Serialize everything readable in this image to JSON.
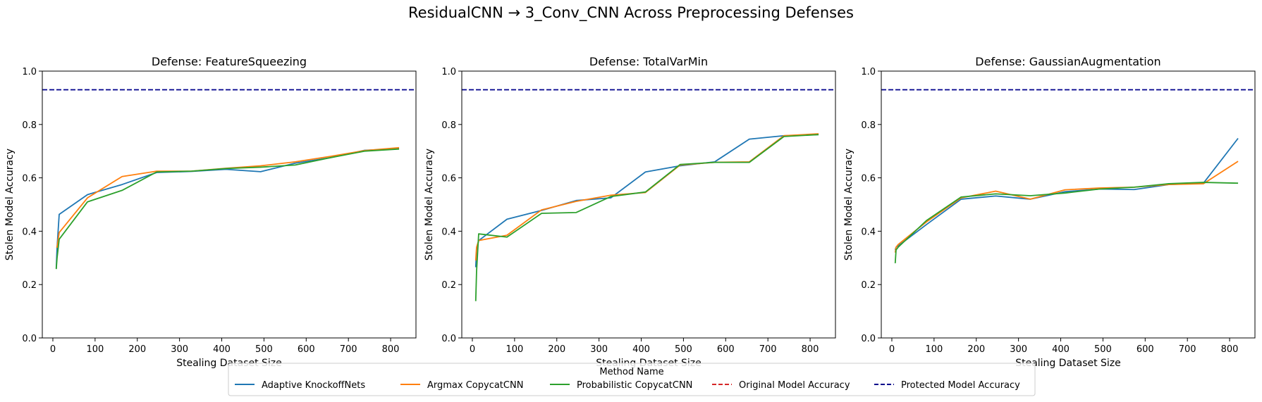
{
  "figure_title": "ResidualCNN → 3_Conv_CNN Across Preprocessing Defenses",
  "legend": {
    "title": "Method Name",
    "entries": [
      {
        "label": "Adaptive KnockoffNets",
        "color": "#1f77b4",
        "style": "solid"
      },
      {
        "label": "Argmax CopycatCNN",
        "color": "#ff7f0e",
        "style": "solid"
      },
      {
        "label": "Probabilistic CopycatCNN",
        "color": "#2ca02c",
        "style": "solid"
      },
      {
        "label": "Original Model Accuracy",
        "color": "#d62728",
        "style": "dashed"
      },
      {
        "label": "Protected Model Accuracy",
        "color": "#00008b",
        "style": "dashed"
      }
    ],
    "placement": "bottom-center"
  },
  "chart_data": [
    {
      "type": "line",
      "title": "Defense: FeatureSqueezing",
      "xlabel": "Stealing Dataset Size",
      "ylabel": "Stolen Model Accuracy",
      "xlim": [
        -25,
        860
      ],
      "ylim": [
        0,
        1.0
      ],
      "xticks": [
        "0",
        "100",
        "200",
        "300",
        "400",
        "500",
        "600",
        "700",
        "800"
      ],
      "yticks": [
        "0.0",
        "0.2",
        "0.4",
        "0.6",
        "0.8",
        "1.0"
      ],
      "grid": false,
      "hlines": [
        {
          "name": "Protected Model Accuracy",
          "y": 0.93,
          "color": "#00008b"
        }
      ],
      "series": [
        {
          "name": "Adaptive KnockoffNets",
          "color": "#1f77b4",
          "x": [
            8,
            10,
            15,
            82,
            164,
            246,
            328,
            410,
            492,
            574,
            656,
            738,
            820
          ],
          "y": [
            0.26,
            0.34,
            0.463,
            0.537,
            0.575,
            0.62,
            0.624,
            0.632,
            0.623,
            0.655,
            0.675,
            0.703,
            0.709
          ]
        },
        {
          "name": "Argmax CopycatCNN",
          "color": "#ff7f0e",
          "x": [
            8,
            10,
            15,
            82,
            164,
            246,
            328,
            410,
            492,
            574,
            656,
            738,
            820
          ],
          "y": [
            0.34,
            0.34,
            0.395,
            0.525,
            0.605,
            0.625,
            0.625,
            0.636,
            0.645,
            0.66,
            0.68,
            0.702,
            0.713
          ]
        },
        {
          "name": "Probabilistic CopycatCNN",
          "color": "#2ca02c",
          "x": [
            8,
            10,
            15,
            82,
            164,
            246,
            328,
            410,
            492,
            574,
            656,
            738,
            820
          ],
          "y": [
            0.258,
            0.3,
            0.37,
            0.51,
            0.553,
            0.622,
            0.625,
            0.635,
            0.64,
            0.648,
            0.675,
            0.7,
            0.708
          ]
        }
      ]
    },
    {
      "type": "line",
      "title": "Defense: TotalVarMin",
      "xlabel": "Stealing Dataset Size",
      "ylabel": "Stolen Model Accuracy",
      "xlim": [
        -25,
        860
      ],
      "ylim": [
        0,
        1.0
      ],
      "xticks": [
        "0",
        "100",
        "200",
        "300",
        "400",
        "500",
        "600",
        "700",
        "800"
      ],
      "yticks": [
        "0.0",
        "0.2",
        "0.4",
        "0.6",
        "0.8",
        "1.0"
      ],
      "grid": false,
      "hlines": [
        {
          "name": "Protected Model Accuracy",
          "y": 0.93,
          "color": "#00008b"
        }
      ],
      "series": [
        {
          "name": "Adaptive KnockoffNets",
          "color": "#1f77b4",
          "x": [
            8,
            10,
            15,
            82,
            164,
            246,
            328,
            410,
            492,
            574,
            656,
            738,
            820
          ],
          "y": [
            0.265,
            0.33,
            0.365,
            0.445,
            0.478,
            0.515,
            0.525,
            0.622,
            0.645,
            0.66,
            0.745,
            0.758,
            0.762
          ]
        },
        {
          "name": "Argmax CopycatCNN",
          "color": "#ff7f0e",
          "x": [
            8,
            10,
            15,
            82,
            164,
            246,
            328,
            410,
            492,
            574,
            656,
            738,
            820
          ],
          "y": [
            0.29,
            0.34,
            0.365,
            0.385,
            0.48,
            0.512,
            0.535,
            0.545,
            0.648,
            0.658,
            0.66,
            0.758,
            0.765
          ]
        },
        {
          "name": "Probabilistic CopycatCNN",
          "color": "#2ca02c",
          "x": [
            8,
            10,
            15,
            82,
            164,
            246,
            328,
            410,
            492,
            574,
            656,
            738,
            820
          ],
          "y": [
            0.138,
            0.25,
            0.39,
            0.378,
            0.467,
            0.47,
            0.53,
            0.547,
            0.65,
            0.658,
            0.658,
            0.755,
            0.762
          ]
        }
      ]
    },
    {
      "type": "line",
      "title": "Defense: GaussianAugmentation",
      "xlabel": "Stealing Dataset Size",
      "ylabel": "Stolen Model Accuracy",
      "xlim": [
        -25,
        860
      ],
      "ylim": [
        0,
        1.0
      ],
      "xticks": [
        "0",
        "100",
        "200",
        "300",
        "400",
        "500",
        "600",
        "700",
        "800"
      ],
      "yticks": [
        "0.0",
        "0.2",
        "0.4",
        "0.6",
        "0.8",
        "1.0"
      ],
      "grid": false,
      "hlines": [
        {
          "name": "Protected Model Accuracy",
          "y": 0.93,
          "color": "#00008b"
        }
      ],
      "series": [
        {
          "name": "Adaptive KnockoffNets",
          "color": "#1f77b4",
          "x": [
            8,
            10,
            15,
            82,
            164,
            246,
            328,
            410,
            492,
            574,
            656,
            738,
            820
          ],
          "y": [
            0.33,
            0.34,
            0.345,
            0.425,
            0.52,
            0.532,
            0.52,
            0.548,
            0.558,
            0.556,
            0.575,
            0.58,
            0.748
          ]
        },
        {
          "name": "Argmax CopycatCNN",
          "color": "#ff7f0e",
          "x": [
            8,
            10,
            15,
            82,
            164,
            246,
            328,
            410,
            492,
            574,
            656,
            738,
            820
          ],
          "y": [
            0.32,
            0.34,
            0.35,
            0.435,
            0.525,
            0.55,
            0.52,
            0.555,
            0.562,
            0.565,
            0.575,
            0.578,
            0.662
          ]
        },
        {
          "name": "Probabilistic CopycatCNN",
          "color": "#2ca02c",
          "x": [
            8,
            10,
            15,
            82,
            164,
            246,
            328,
            410,
            492,
            574,
            656,
            738,
            820
          ],
          "y": [
            0.28,
            0.33,
            0.34,
            0.44,
            0.528,
            0.54,
            0.533,
            0.543,
            0.558,
            0.565,
            0.578,
            0.583,
            0.58
          ]
        }
      ]
    }
  ]
}
